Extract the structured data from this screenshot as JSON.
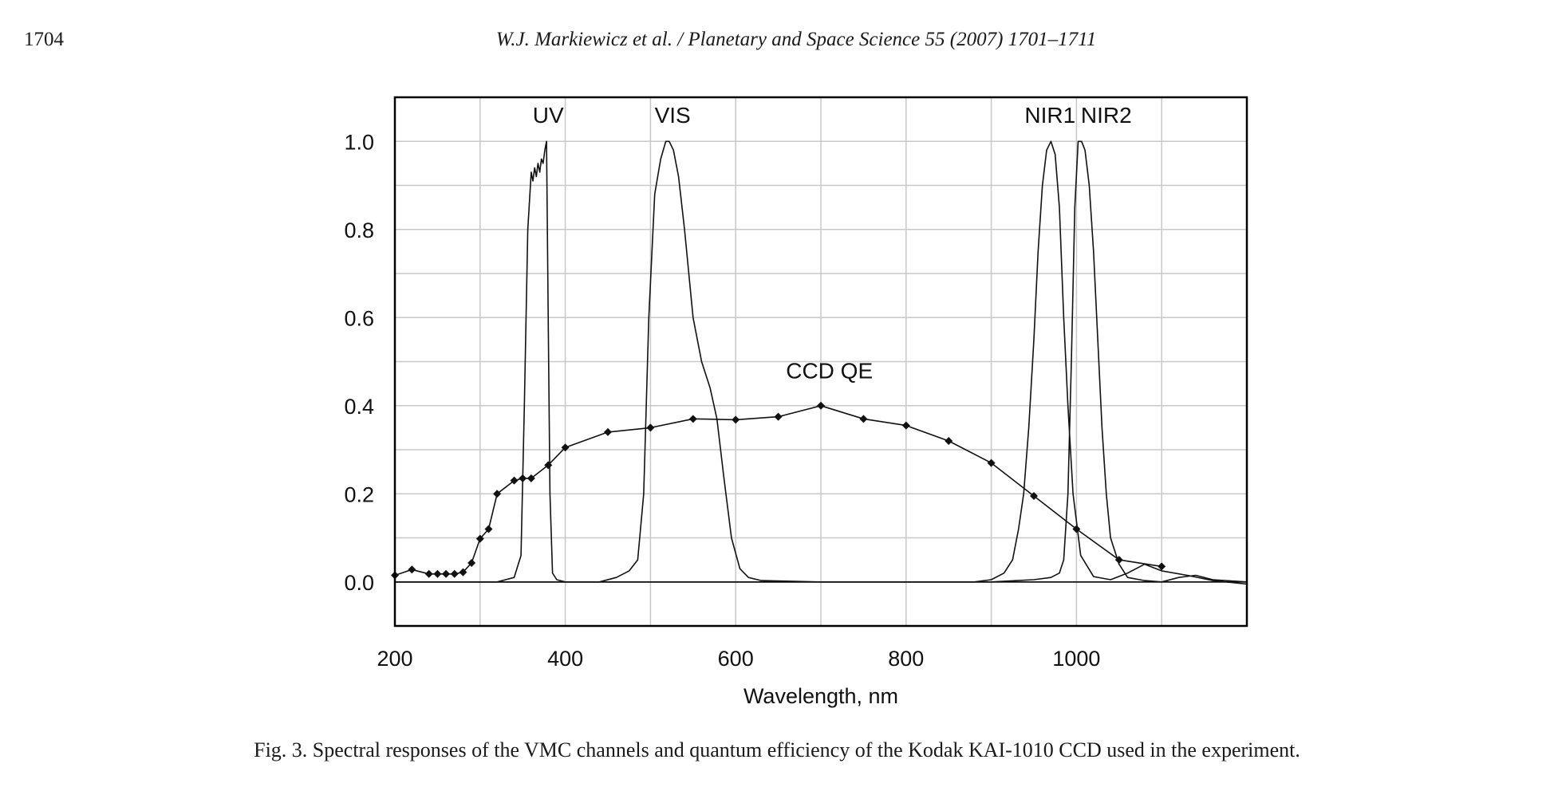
{
  "header": {
    "page_number": "1704",
    "running_head": "W.J. Markiewicz et al. / Planetary and Space Science 55 (2007) 1701–1711"
  },
  "caption": "Fig. 3.  Spectral responses of the VMC channels and quantum efficiency of the Kodak KAI-1010 CCD used in the experiment.",
  "chart_data": {
    "type": "line",
    "title": "",
    "xlabel": "Wavelength, nm",
    "ylabel": "",
    "xlim": [
      200,
      1200
    ],
    "ylim": [
      -0.1,
      1.1
    ],
    "x_ticks": [
      200,
      400,
      600,
      800,
      1000
    ],
    "y_ticks": [
      0.0,
      0.2,
      0.4,
      0.6,
      0.8,
      1.0
    ],
    "x_tick_labels": [
      "200",
      "400",
      "600",
      "800",
      "1000"
    ],
    "y_tick_labels": [
      "0.0",
      "0.2",
      "0.4",
      "0.6",
      "0.8",
      "1.0"
    ],
    "x_minor_step": 100,
    "y_minor_step": 0.1,
    "grid": true,
    "legend": "none",
    "annotations": [
      {
        "text": "UV",
        "x": 380,
        "y": 1.06
      },
      {
        "text": "VIS",
        "x": 526,
        "y": 1.06
      },
      {
        "text": "NIR1",
        "x": 969,
        "y": 1.06
      },
      {
        "text": "NIR2",
        "x": 1035,
        "y": 1.06
      },
      {
        "text": "CCD QE",
        "x": 710,
        "y": 0.48
      }
    ],
    "series": [
      {
        "name": "UV",
        "markers": false,
        "x": [
          200,
          320,
          340,
          348,
          352,
          356,
          360,
          362,
          364,
          366,
          368,
          370,
          372,
          374,
          376,
          378,
          380,
          382,
          385,
          390,
          400,
          1200
        ],
        "y": [
          0.0,
          0.0,
          0.01,
          0.06,
          0.4,
          0.8,
          0.93,
          0.91,
          0.94,
          0.92,
          0.95,
          0.93,
          0.96,
          0.95,
          0.98,
          1.0,
          0.6,
          0.2,
          0.02,
          0.005,
          0.0,
          0.0
        ]
      },
      {
        "name": "VIS",
        "markers": false,
        "x": [
          200,
          440,
          460,
          475,
          485,
          492,
          498,
          505,
          512,
          518,
          522,
          527,
          533,
          540,
          550,
          560,
          570,
          578,
          586,
          595,
          605,
          615,
          630,
          650,
          700,
          800,
          900,
          1200
        ],
        "y": [
          0.0,
          0.0,
          0.01,
          0.025,
          0.05,
          0.2,
          0.6,
          0.88,
          0.96,
          1.0,
          1.0,
          0.98,
          0.92,
          0.8,
          0.6,
          0.5,
          0.44,
          0.37,
          0.24,
          0.1,
          0.03,
          0.01,
          0.003,
          0.002,
          0.0,
          0.0,
          0.0,
          0.0
        ]
      },
      {
        "name": "NIR1",
        "markers": false,
        "x": [
          200,
          880,
          900,
          915,
          925,
          932,
          938,
          944,
          950,
          955,
          960,
          965,
          970,
          975,
          980,
          985,
          990,
          996,
          1005,
          1020,
          1040,
          1060,
          1080,
          1100,
          1130,
          1160,
          1200
        ],
        "y": [
          0.0,
          0.0,
          0.005,
          0.02,
          0.05,
          0.12,
          0.2,
          0.35,
          0.55,
          0.75,
          0.9,
          0.98,
          1.0,
          0.97,
          0.85,
          0.6,
          0.4,
          0.2,
          0.06,
          0.012,
          0.005,
          0.02,
          0.04,
          0.025,
          0.015,
          0.003,
          -0.005
        ]
      },
      {
        "name": "NIR2",
        "markers": false,
        "x": [
          200,
          900,
          950,
          970,
          980,
          985,
          990,
          994,
          998,
          1002,
          1006,
          1010,
          1015,
          1020,
          1025,
          1030,
          1035,
          1040,
          1050,
          1060,
          1080,
          1100,
          1120,
          1140,
          1160,
          1200
        ],
        "y": [
          0.0,
          0.0,
          0.005,
          0.01,
          0.02,
          0.05,
          0.2,
          0.5,
          0.85,
          1.0,
          1.0,
          0.98,
          0.9,
          0.75,
          0.55,
          0.35,
          0.2,
          0.1,
          0.04,
          0.01,
          0.003,
          0.0,
          0.01,
          0.015,
          0.005,
          0.0
        ]
      },
      {
        "name": "CCD QE",
        "markers": true,
        "x": [
          200,
          220,
          240,
          250,
          260,
          270,
          280,
          290,
          300,
          310,
          320,
          340,
          350,
          360,
          380,
          400,
          450,
          500,
          550,
          600,
          650,
          700,
          750,
          800,
          850,
          900,
          950,
          1000,
          1050,
          1100
        ],
        "y": [
          0.015,
          0.028,
          0.018,
          0.018,
          0.018,
          0.018,
          0.022,
          0.043,
          0.098,
          0.12,
          0.2,
          0.23,
          0.235,
          0.235,
          0.265,
          0.305,
          0.34,
          0.35,
          0.37,
          0.368,
          0.375,
          0.4,
          0.37,
          0.355,
          0.32,
          0.27,
          0.195,
          0.12,
          0.05,
          0.035
        ]
      }
    ]
  }
}
